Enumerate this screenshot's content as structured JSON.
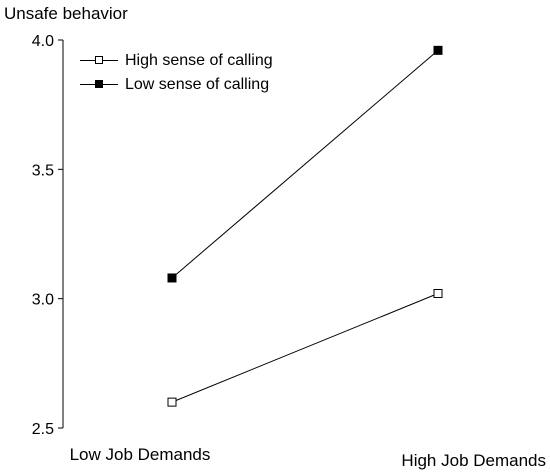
{
  "chart_data": {
    "type": "line",
    "title": "",
    "ylabel": "Unsafe behavior",
    "xlabel": "",
    "categories": [
      "Low Job Demands",
      "High Job Demands"
    ],
    "ylim": [
      2.5,
      4.0
    ],
    "yticks": [
      "2.5",
      "3.0",
      "3.5",
      "4.0"
    ],
    "grid": false,
    "legend_position": "top-left",
    "series": [
      {
        "name": "High sense of calling",
        "values": [
          2.6,
          3.02
        ],
        "marker": "open-square",
        "color": "#000000"
      },
      {
        "name": "Low sense of calling",
        "values": [
          3.08,
          3.96
        ],
        "marker": "filled-square",
        "color": "#000000"
      }
    ]
  }
}
